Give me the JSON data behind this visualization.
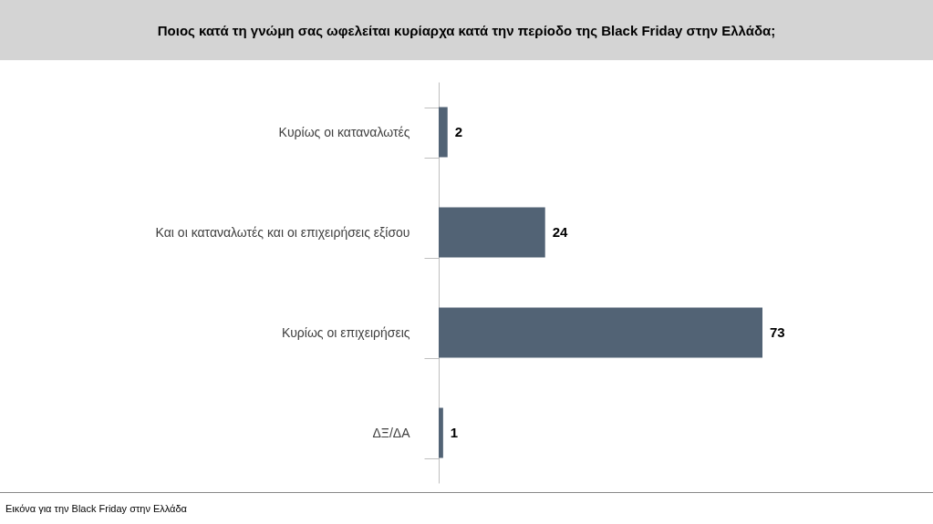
{
  "chart_data": {
    "type": "bar",
    "orientation": "horizontal",
    "title": "Ποιος κατά τη γνώμη σας ωφελείται κυρίαρχα κατά την περίοδο της Black Friday στην Ελλάδα;",
    "categories": [
      "Κυρίως οι καταναλωτές",
      "Και οι καταναλωτές και οι επιχειρήσεις  εξίσου",
      "Κυρίως οι επιχειρήσεις",
      "ΔΞ/ΔΑ"
    ],
    "values": [
      2,
      24,
      73,
      1
    ],
    "color": "#526375",
    "data_labels": true,
    "annotations": [
      "Εικόνα για την Black Friday στην Ελλάδα"
    ]
  }
}
